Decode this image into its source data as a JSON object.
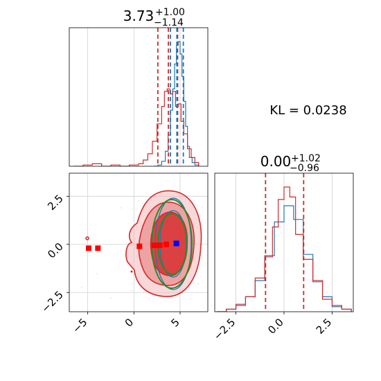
{
  "chart_data": [
    {
      "type": "histogram",
      "panel": "top-left marginal (parameter 1)",
      "title": {
        "median": "3.73",
        "plus": "+1.00",
        "minus": "−1.14"
      },
      "xlim": [
        -7,
        8
      ],
      "dashed_lines_red": [
        2.59,
        3.73,
        4.73
      ],
      "dashed_lines_blue": [
        3.95,
        4.65,
        5.35
      ],
      "series": [
        {
          "name": "",
          "color": "#1f77b4",
          "x": [
            2.2,
            2.6,
            3.0,
            3.4,
            3.7,
            3.95,
            4.2,
            4.4,
            4.6,
            4.8,
            5.0,
            5.2,
            5.4,
            5.6,
            5.8,
            6.0,
            6.3,
            6.6,
            7.0
          ],
          "y": [
            0.0,
            0.01,
            0.04,
            0.12,
            0.25,
            0.45,
            0.62,
            0.82,
            0.97,
            1.0,
            0.9,
            0.72,
            0.52,
            0.32,
            0.16,
            0.07,
            0.03,
            0.01,
            0.0
          ]
        },
        {
          "name": "",
          "color": "#d62728",
          "x": [
            -6.5,
            -5.5,
            -4.5,
            -3.5,
            -2.5,
            -1.5,
            -0.5,
            0.5,
            1.0,
            1.5,
            2.0,
            2.5,
            3.0,
            3.3,
            3.6,
            3.9,
            4.2,
            4.5,
            4.8,
            5.1,
            5.4,
            5.8,
            6.2,
            6.6,
            7.0
          ],
          "y": [
            0.0,
            0.01,
            0.02,
            0.0,
            0.01,
            0.0,
            0.01,
            0.02,
            0.05,
            0.1,
            0.2,
            0.34,
            0.48,
            0.6,
            0.62,
            0.58,
            0.6,
            0.48,
            0.5,
            0.36,
            0.26,
            0.14,
            0.07,
            0.03,
            0.0
          ]
        }
      ],
      "grid": true
    },
    {
      "type": "scatter",
      "panel": "bottom-left 2D contours",
      "xlim": [
        -7,
        8
      ],
      "ylim": [
        -3.5,
        3.7
      ],
      "xticks": [
        "−5",
        "0",
        "5"
      ],
      "yticks": [
        "−2.5",
        "0.0",
        "2.5"
      ],
      "red_markers": [
        [
          -4.9,
          -0.2
        ],
        [
          -3.9,
          -0.2
        ],
        [
          0.6,
          -0.1
        ],
        [
          2.2,
          -0.05
        ],
        [
          2.8,
          -0.05
        ],
        [
          3.5,
          0.0
        ]
      ],
      "blue_marker": [
        4.6,
        0.05
      ],
      "grid": true
    },
    {
      "type": "histogram",
      "panel": "bottom-right marginal (parameter 2)",
      "title": {
        "median": "0.00",
        "plus": "+1.02",
        "minus": "−0.96"
      },
      "xlim": [
        -3.6,
        3.6
      ],
      "xticks": [
        "−2.5",
        "0.0",
        "2.5"
      ],
      "dashed_lines_red": [
        -0.96,
        1.02
      ],
      "series": [
        {
          "name": "",
          "color": "#1f77b4",
          "x": [
            -3.5,
            -3.0,
            -2.5,
            -2.0,
            -1.5,
            -1.0,
            -0.5,
            0.0,
            0.5,
            1.0,
            1.5,
            2.0,
            2.5,
            3.0,
            3.5
          ],
          "y": [
            0.0,
            0.02,
            0.05,
            0.12,
            0.25,
            0.45,
            0.72,
            0.85,
            0.74,
            0.46,
            0.24,
            0.12,
            0.04,
            0.02,
            0.0
          ]
        },
        {
          "name": "",
          "color": "#d62728",
          "x": [
            -3.5,
            -3.0,
            -2.5,
            -2.0,
            -1.5,
            -1.0,
            -0.6,
            -0.3,
            0.0,
            0.3,
            0.6,
            1.0,
            1.5,
            2.0,
            2.5,
            3.0,
            3.5
          ],
          "y": [
            0.0,
            0.02,
            0.06,
            0.12,
            0.27,
            0.44,
            0.68,
            0.9,
            1.0,
            0.92,
            0.62,
            0.42,
            0.25,
            0.1,
            0.05,
            0.02,
            0.0
          ]
        }
      ],
      "grid": true
    }
  ],
  "annotation": {
    "kl_text": "KL = 0.0238"
  }
}
